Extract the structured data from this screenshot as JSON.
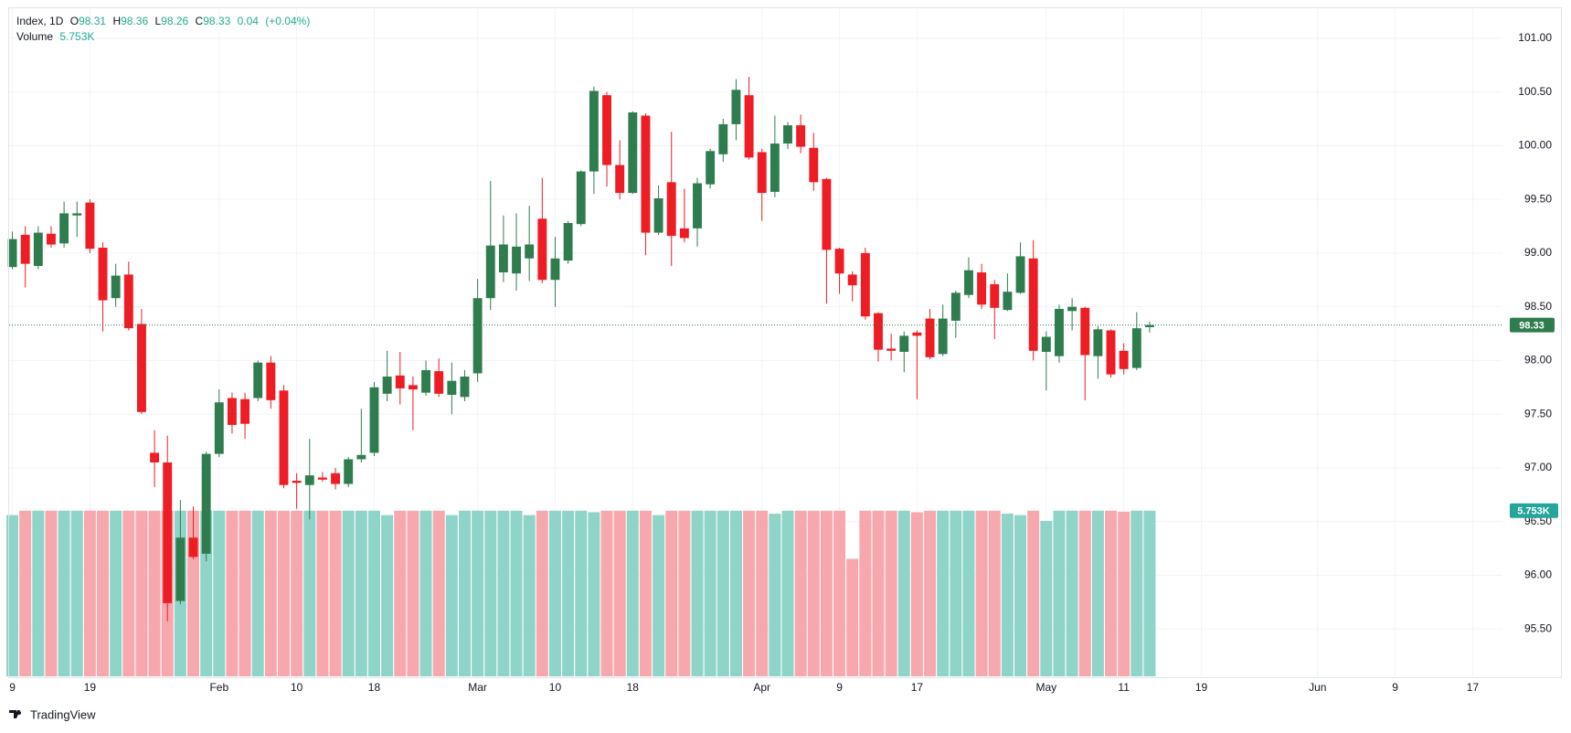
{
  "chart_data": {
    "type": "candlestick",
    "symbol": "Index, 1D",
    "ohlc_labels": [
      "O",
      "H",
      "L",
      "C"
    ],
    "change": 0.04,
    "change_percent": {
      "value": 0.04,
      "label": "(+0.04%)"
    },
    "volume_name": "Volume",
    "volume_last_label": "5.753K",
    "branding": "TradingView",
    "up_color": "#2f7d4f",
    "down_color": "#ee1c24",
    "volume_up_color": "#8fd4c8",
    "volume_down_color": "#f7a8ae",
    "grid": true,
    "open": [
      98.87,
      99.17,
      98.88,
      99.18,
      99.09,
      99.35,
      99.47,
      99.05,
      98.58,
      98.8,
      98.34,
      97.14,
      97.05,
      95.76,
      96.35,
      96.2,
      97.13,
      97.65,
      97.64,
      97.65,
      97.98,
      97.72,
      96.88,
      96.84,
      96.91,
      96.95,
      96.85,
      97.08,
      97.14,
      97.69,
      97.86,
      97.77,
      97.7,
      97.9,
      97.68,
      97.66,
      97.88,
      98.58,
      98.82,
      98.81,
      98.95,
      99.32,
      98.75,
      98.93,
      99.27,
      99.76,
      100.47,
      99.82,
      99.56,
      100.28,
      99.19,
      99.66,
      99.23,
      99.23,
      99.64,
      99.92,
      100.2,
      100.47,
      99.94,
      99.57,
      100.02,
      100.19,
      99.98,
      99.69,
      99.04,
      98.8,
      99.0,
      98.44,
      98.11,
      98.08,
      98.26,
      98.39,
      98.06,
      98.37,
      98.61,
      98.82,
      98.71,
      98.47,
      98.63,
      98.95,
      98.08,
      98.04,
      98.46,
      98.49,
      98.04,
      98.28,
      98.09,
      97.93,
      98.31
    ],
    "high": [
      99.2,
      99.25,
      99.25,
      99.25,
      99.48,
      99.48,
      99.5,
      99.1,
      98.9,
      98.92,
      98.48,
      97.35,
      97.3,
      96.7,
      96.64,
      97.15,
      97.73,
      97.7,
      97.7,
      98.0,
      98.04,
      97.77,
      96.95,
      97.27,
      96.96,
      97.0,
      97.1,
      97.55,
      97.8,
      98.09,
      98.08,
      97.85,
      98.0,
      98.02,
      97.98,
      97.91,
      98.76,
      99.67,
      99.35,
      99.37,
      99.44,
      99.7,
      99.15,
      99.3,
      99.77,
      100.55,
      100.5,
      100.05,
      100.32,
      100.3,
      99.63,
      100.13,
      99.6,
      99.7,
      99.97,
      100.25,
      100.62,
      100.64,
      99.97,
      100.28,
      100.22,
      100.29,
      100.12,
      99.7,
      99.05,
      98.83,
      99.05,
      98.45,
      98.25,
      98.27,
      98.28,
      98.48,
      98.52,
      98.65,
      98.96,
      98.9,
      98.75,
      98.81,
      99.1,
      99.12,
      98.27,
      98.52,
      98.58,
      98.5,
      98.32,
      98.29,
      98.16,
      98.45,
      98.36
    ],
    "low": [
      98.85,
      98.68,
      98.85,
      99.05,
      99.05,
      99.15,
      99.0,
      98.27,
      98.5,
      98.28,
      97.5,
      96.82,
      95.57,
      95.73,
      96.15,
      96.13,
      97.1,
      97.32,
      97.27,
      97.62,
      97.55,
      96.81,
      96.62,
      96.52,
      96.87,
      96.8,
      96.82,
      97.05,
      97.11,
      97.62,
      97.59,
      97.35,
      97.67,
      97.66,
      97.5,
      97.62,
      97.8,
      98.47,
      98.73,
      98.65,
      98.74,
      98.72,
      98.5,
      98.9,
      99.25,
      99.55,
      99.62,
      99.5,
      99.55,
      98.98,
      99.17,
      98.88,
      99.1,
      99.06,
      99.6,
      99.85,
      100.05,
      99.87,
      99.3,
      99.52,
      99.97,
      99.93,
      99.58,
      98.53,
      98.62,
      98.55,
      98.38,
      97.99,
      98.0,
      97.89,
      97.64,
      98.01,
      98.04,
      98.21,
      98.58,
      98.48,
      98.2,
      98.46,
      98.62,
      98.0,
      97.72,
      97.98,
      98.28,
      97.63,
      97.83,
      97.84,
      97.87,
      97.91,
      98.26
    ],
    "close": [
      99.13,
      98.9,
      99.19,
      99.08,
      99.37,
      99.37,
      99.04,
      98.56,
      98.79,
      98.3,
      97.52,
      97.05,
      95.74,
      96.35,
      96.17,
      97.13,
      97.61,
      97.4,
      97.41,
      97.98,
      97.63,
      96.84,
      96.86,
      96.93,
      96.89,
      96.85,
      97.08,
      97.12,
      97.75,
      97.85,
      97.74,
      97.73,
      97.91,
      97.69,
      97.81,
      97.85,
      98.58,
      99.07,
      99.08,
      99.06,
      99.08,
      98.75,
      98.95,
      99.28,
      99.76,
      100.51,
      99.82,
      99.56,
      100.31,
      99.19,
      99.51,
      99.16,
      99.14,
      99.65,
      99.95,
      100.2,
      100.52,
      99.89,
      99.56,
      100.02,
      100.19,
      99.99,
      99.66,
      99.03,
      98.81,
      98.7,
      98.41,
      98.1,
      98.09,
      98.23,
      98.23,
      98.03,
      98.39,
      98.63,
      98.84,
      98.52,
      98.49,
      98.64,
      98.97,
      98.09,
      98.22,
      98.48,
      98.5,
      98.05,
      98.29,
      97.87,
      97.92,
      98.3,
      98.33
    ],
    "volume": [
      5600,
      5753,
      5753,
      5753,
      5753,
      5753,
      5753,
      5753,
      5753,
      5753,
      5753,
      5753,
      5753,
      5753,
      5753,
      5753,
      5753,
      5753,
      5753,
      5753,
      5753,
      5753,
      5753,
      5753,
      5753,
      5753,
      5753,
      5753,
      5753,
      5600,
      5753,
      5753,
      5753,
      5753,
      5600,
      5753,
      5753,
      5753,
      5753,
      5753,
      5600,
      5753,
      5753,
      5753,
      5753,
      5700,
      5753,
      5753,
      5753,
      5753,
      5600,
      5753,
      5753,
      5753,
      5753,
      5753,
      5753,
      5753,
      5753,
      5650,
      5753,
      5753,
      5753,
      5753,
      5753,
      4080,
      5753,
      5753,
      5753,
      5753,
      5700,
      5753,
      5753,
      5753,
      5753,
      5753,
      5753,
      5650,
      5600,
      5753,
      5400,
      5753,
      5753,
      5753,
      5753,
      5753,
      5720,
      5753,
      5753
    ],
    "vlim": [
      0,
      6000
    ],
    "xlim": [
      -0.25,
      115.3
    ],
    "xticks": [
      {
        "value": 0,
        "label": "9"
      },
      {
        "value": 6,
        "label": "19"
      },
      {
        "value": 16,
        "label": "Feb"
      },
      {
        "value": 22,
        "label": "10"
      },
      {
        "value": 28,
        "label": "18"
      },
      {
        "value": 36,
        "label": "Mar"
      },
      {
        "value": 42,
        "label": "10"
      },
      {
        "value": 48,
        "label": "18"
      },
      {
        "value": 58,
        "label": "Apr"
      },
      {
        "value": 64,
        "label": "9"
      },
      {
        "value": 70,
        "label": "17"
      },
      {
        "value": 80,
        "label": "May"
      },
      {
        "value": 86,
        "label": "11"
      },
      {
        "value": 92,
        "label": "19"
      },
      {
        "value": 101,
        "label": "Jun"
      },
      {
        "value": 107,
        "label": "9"
      },
      {
        "value": 113,
        "label": "17"
      }
    ],
    "ylim": [
      95.05,
      101.28
    ],
    "yticks": [
      {
        "value": 95.5,
        "label": "95.50"
      },
      {
        "value": 96,
        "label": "96.00"
      },
      {
        "value": 96.5,
        "label": "96.50"
      },
      {
        "value": 97,
        "label": "97.00"
      },
      {
        "value": 97.5,
        "label": "97.50"
      },
      {
        "value": 98,
        "label": "98.00"
      },
      {
        "value": 98.5,
        "label": "98.50"
      },
      {
        "value": 99,
        "label": "99.00"
      },
      {
        "value": 99.5,
        "label": "99.50"
      },
      {
        "value": 100,
        "label": "100.00"
      },
      {
        "value": 100.5,
        "label": "100.50"
      },
      {
        "value": 101,
        "label": "101.00"
      }
    ]
  }
}
